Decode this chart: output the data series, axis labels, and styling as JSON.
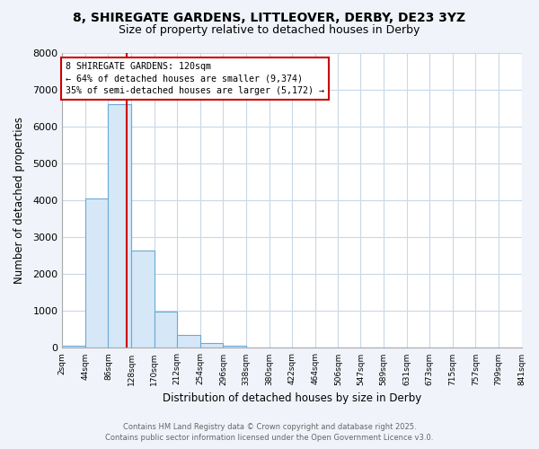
{
  "title_line1": "8, SHIREGATE GARDENS, LITTLEOVER, DERBY, DE23 3YZ",
  "title_line2": "Size of property relative to detached houses in Derby",
  "xlabel": "Distribution of detached houses by size in Derby",
  "ylabel": "Number of detached properties",
  "bin_edges": [
    2,
    44,
    86,
    128,
    170,
    212,
    254,
    296,
    338,
    380,
    422,
    464,
    506,
    547,
    589,
    631,
    673,
    715,
    757,
    799,
    841
  ],
  "bar_heights": [
    50,
    4050,
    6620,
    2650,
    980,
    340,
    130,
    70,
    0,
    0,
    0,
    0,
    0,
    0,
    0,
    0,
    0,
    0,
    0,
    0
  ],
  "bar_color": "#d6e8f7",
  "bar_edge_color": "#6aaad4",
  "grid_color": "#c8d8e8",
  "property_size": 120,
  "vline_color": "#cc0000",
  "annotation_text": "8 SHIREGATE GARDENS: 120sqm\n← 64% of detached houses are smaller (9,374)\n35% of semi-detached houses are larger (5,172) →",
  "annotation_box_color": "#ffffff",
  "annotation_edge_color": "#cc0000",
  "ylim": [
    0,
    8000
  ],
  "yticks": [
    0,
    1000,
    2000,
    3000,
    4000,
    5000,
    6000,
    7000,
    8000
  ],
  "footer_line1": "Contains HM Land Registry data © Crown copyright and database right 2025.",
  "footer_line2": "Contains public sector information licensed under the Open Government Licence v3.0.",
  "bg_color": "#f0f4fa",
  "plot_bg_color": "#ffffff"
}
